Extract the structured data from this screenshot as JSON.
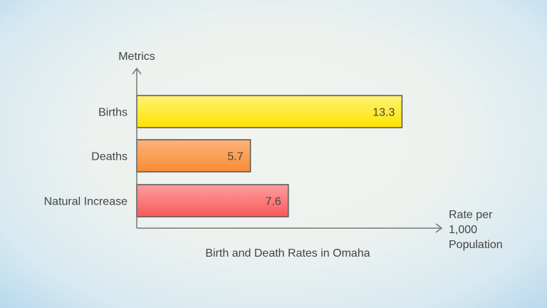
{
  "chart_data": {
    "type": "bar",
    "orientation": "horizontal",
    "title": "Birth and Death Rates in Omaha",
    "ylabel": "Metrics",
    "xlabel": "Rate per 1,000 Population",
    "xlabel_lines": [
      "Rate per",
      "1,000",
      "Population"
    ],
    "categories": [
      "Births",
      "Deaths",
      "Natural Increase"
    ],
    "values": [
      13.3,
      5.7,
      7.6
    ],
    "value_labels": [
      "13.3",
      "5.7",
      "7.6"
    ],
    "colors": [
      [
        "#fff176",
        "#fde400"
      ],
      [
        "#ffb27a",
        "#f78c34"
      ],
      [
        "#ff9e9e",
        "#f75a5a"
      ]
    ],
    "grid": false,
    "legend": "none"
  }
}
